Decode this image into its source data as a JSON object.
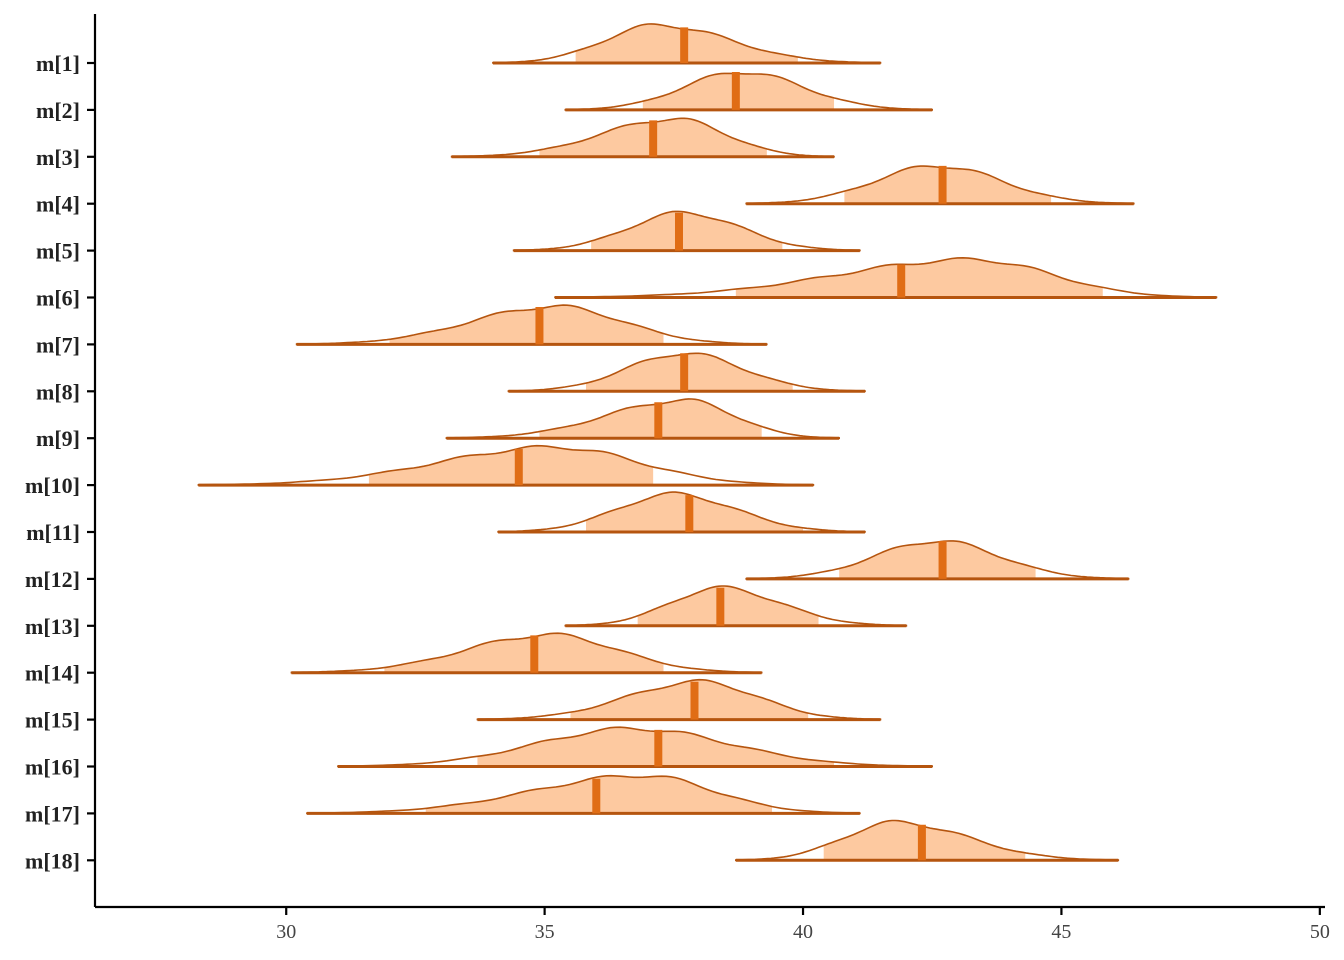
{
  "chart_data": {
    "type": "density-interval",
    "title": "",
    "xlabel": "",
    "ylabel": "",
    "xlim": [
      26.3,
      50.1
    ],
    "xticks": [
      30,
      35,
      40,
      45,
      50
    ],
    "colors": {
      "fill": "#fdc9a0",
      "outline": "#b5550f",
      "median": "#e06d15",
      "axis": "#000000"
    },
    "series": [
      {
        "label": "m[1]",
        "range": [
          34.0,
          41.5
        ],
        "inner": [
          35.6,
          39.9
        ],
        "median": 37.7,
        "peak": 37.2
      },
      {
        "label": "m[2]",
        "range": [
          35.4,
          42.5
        ],
        "inner": [
          36.9,
          40.6
        ],
        "median": 38.7,
        "peak": 38.8
      },
      {
        "label": "m[3]",
        "range": [
          33.2,
          40.6
        ],
        "inner": [
          34.9,
          39.3
        ],
        "median": 37.1,
        "peak": 37.5
      },
      {
        "label": "m[4]",
        "range": [
          38.9,
          46.4
        ],
        "inner": [
          40.8,
          44.8
        ],
        "median": 42.7,
        "peak": 42.6
      },
      {
        "label": "m[5]",
        "range": [
          34.4,
          41.1
        ],
        "inner": [
          35.9,
          39.6
        ],
        "median": 37.6,
        "peak": 37.7
      },
      {
        "label": "m[6]",
        "range": [
          35.2,
          48.0
        ],
        "inner": [
          38.7,
          45.8
        ],
        "median": 41.9,
        "peak": 43.3
      },
      {
        "label": "m[7]",
        "range": [
          30.2,
          39.3
        ],
        "inner": [
          32.0,
          37.3
        ],
        "median": 34.9,
        "peak": 35.2
      },
      {
        "label": "m[8]",
        "range": [
          34.3,
          41.2
        ],
        "inner": [
          35.8,
          39.8
        ],
        "median": 37.7,
        "peak": 37.7
      },
      {
        "label": "m[9]",
        "range": [
          33.1,
          40.7
        ],
        "inner": [
          34.9,
          39.2
        ],
        "median": 37.2,
        "peak": 37.7
      },
      {
        "label": "m[10]",
        "range": [
          28.3,
          40.2
        ],
        "inner": [
          31.6,
          37.1
        ],
        "median": 34.5,
        "peak": 35.2
      },
      {
        "label": "m[11]",
        "range": [
          34.1,
          41.2
        ],
        "inner": [
          35.8,
          40.0
        ],
        "median": 37.8,
        "peak": 37.5
      },
      {
        "label": "m[12]",
        "range": [
          38.9,
          46.3
        ],
        "inner": [
          40.7,
          44.5
        ],
        "median": 42.7,
        "peak": 42.6
      },
      {
        "label": "m[13]",
        "range": [
          35.4,
          42.0
        ],
        "inner": [
          36.8,
          40.3
        ],
        "median": 38.4,
        "peak": 38.4
      },
      {
        "label": "m[14]",
        "range": [
          30.1,
          39.2
        ],
        "inner": [
          31.9,
          37.3
        ],
        "median": 34.8,
        "peak": 35.1
      },
      {
        "label": "m[15]",
        "range": [
          33.7,
          41.5
        ],
        "inner": [
          35.5,
          40.1
        ],
        "median": 37.9,
        "peak": 38.0
      },
      {
        "label": "m[16]",
        "range": [
          31.0,
          42.5
        ],
        "inner": [
          33.7,
          40.6
        ],
        "median": 37.2,
        "peak": 36.7
      },
      {
        "label": "m[17]",
        "range": [
          30.4,
          41.1
        ],
        "inner": [
          32.7,
          39.4
        ],
        "median": 36.0,
        "peak": 36.9
      },
      {
        "label": "m[18]",
        "range": [
          38.7,
          46.1
        ],
        "inner": [
          40.4,
          44.3
        ],
        "median": 42.3,
        "peak": 41.8
      }
    ]
  }
}
